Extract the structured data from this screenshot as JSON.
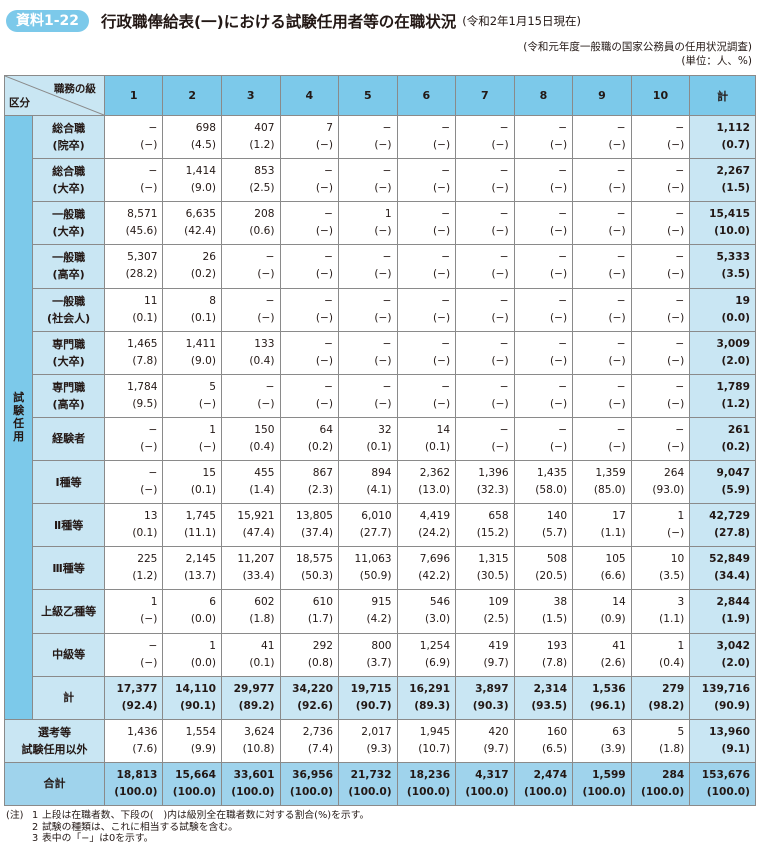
{
  "header": {
    "badge": "資料1-22",
    "title": "行政職俸給表(一)における試験任用者等の在職状況",
    "date": "(令和2年1月15日現在)"
  },
  "source": {
    "line1": "(令和元年度一般職の国家公務員の任用状況調査)",
    "line2": "(単位：人、%)"
  },
  "table": {
    "corner_top": "職務の級",
    "corner_bottom": "区分",
    "columns": [
      "1",
      "2",
      "3",
      "4",
      "5",
      "6",
      "7",
      "8",
      "9",
      "10",
      "計"
    ],
    "side_group_chars": [
      "試",
      "験",
      "任",
      "用"
    ],
    "rows": [
      {
        "label": [
          "総合職",
          "(院卒)"
        ],
        "values": [
          "−",
          "698",
          "407",
          "7",
          "−",
          "−",
          "−",
          "−",
          "−",
          "−",
          "1,112"
        ],
        "pcts": [
          "(−)",
          "(4.5)",
          "(1.2)",
          "(−)",
          "(−)",
          "(−)",
          "(−)",
          "(−)",
          "(−)",
          "(−)",
          "(0.7)"
        ]
      },
      {
        "label": [
          "総合職",
          "(大卒)"
        ],
        "values": [
          "−",
          "1,414",
          "853",
          "−",
          "−",
          "−",
          "−",
          "−",
          "−",
          "−",
          "2,267"
        ],
        "pcts": [
          "(−)",
          "(9.0)",
          "(2.5)",
          "(−)",
          "(−)",
          "(−)",
          "(−)",
          "(−)",
          "(−)",
          "(−)",
          "(1.5)"
        ]
      },
      {
        "label": [
          "一般職",
          "(大卒)"
        ],
        "values": [
          "8,571",
          "6,635",
          "208",
          "−",
          "1",
          "−",
          "−",
          "−",
          "−",
          "−",
          "15,415"
        ],
        "pcts": [
          "(45.6)",
          "(42.4)",
          "(0.6)",
          "(−)",
          "(−)",
          "(−)",
          "(−)",
          "(−)",
          "(−)",
          "(−)",
          "(10.0)"
        ]
      },
      {
        "label": [
          "一般職",
          "(高卒)"
        ],
        "values": [
          "5,307",
          "26",
          "−",
          "−",
          "−",
          "−",
          "−",
          "−",
          "−",
          "−",
          "5,333"
        ],
        "pcts": [
          "(28.2)",
          "(0.2)",
          "(−)",
          "(−)",
          "(−)",
          "(−)",
          "(−)",
          "(−)",
          "(−)",
          "(−)",
          "(3.5)"
        ]
      },
      {
        "label": [
          "一般職",
          "(社会人)"
        ],
        "values": [
          "11",
          "8",
          "−",
          "−",
          "−",
          "−",
          "−",
          "−",
          "−",
          "−",
          "19"
        ],
        "pcts": [
          "(0.1)",
          "(0.1)",
          "(−)",
          "(−)",
          "(−)",
          "(−)",
          "(−)",
          "(−)",
          "(−)",
          "(−)",
          "(0.0)"
        ]
      },
      {
        "label": [
          "専門職",
          "(大卒)"
        ],
        "values": [
          "1,465",
          "1,411",
          "133",
          "−",
          "−",
          "−",
          "−",
          "−",
          "−",
          "−",
          "3,009"
        ],
        "pcts": [
          "(7.8)",
          "(9.0)",
          "(0.4)",
          "(−)",
          "(−)",
          "(−)",
          "(−)",
          "(−)",
          "(−)",
          "(−)",
          "(2.0)"
        ]
      },
      {
        "label": [
          "専門職",
          "(高卒)"
        ],
        "values": [
          "1,784",
          "5",
          "−",
          "−",
          "−",
          "−",
          "−",
          "−",
          "−",
          "−",
          "1,789"
        ],
        "pcts": [
          "(9.5)",
          "(−)",
          "(−)",
          "(−)",
          "(−)",
          "(−)",
          "(−)",
          "(−)",
          "(−)",
          "(−)",
          "(1.2)"
        ]
      },
      {
        "label": [
          "経験者"
        ],
        "values": [
          "−",
          "1",
          "150",
          "64",
          "32",
          "14",
          "−",
          "−",
          "−",
          "−",
          "261"
        ],
        "pcts": [
          "(−)",
          "(−)",
          "(0.4)",
          "(0.2)",
          "(0.1)",
          "(0.1)",
          "(−)",
          "(−)",
          "(−)",
          "(−)",
          "(0.2)"
        ]
      },
      {
        "label": [
          "Ⅰ種等"
        ],
        "values": [
          "−",
          "15",
          "455",
          "867",
          "894",
          "2,362",
          "1,396",
          "1,435",
          "1,359",
          "264",
          "9,047"
        ],
        "pcts": [
          "(−)",
          "(0.1)",
          "(1.4)",
          "(2.3)",
          "(4.1)",
          "(13.0)",
          "(32.3)",
          "(58.0)",
          "(85.0)",
          "(93.0)",
          "(5.9)"
        ]
      },
      {
        "label": [
          "Ⅱ種等"
        ],
        "values": [
          "13",
          "1,745",
          "15,921",
          "13,805",
          "6,010",
          "4,419",
          "658",
          "140",
          "17",
          "1",
          "42,729"
        ],
        "pcts": [
          "(0.1)",
          "(11.1)",
          "(47.4)",
          "(37.4)",
          "(27.7)",
          "(24.2)",
          "(15.2)",
          "(5.7)",
          "(1.1)",
          "(−)",
          "(27.8)"
        ]
      },
      {
        "label": [
          "Ⅲ種等"
        ],
        "values": [
          "225",
          "2,145",
          "11,207",
          "18,575",
          "11,063",
          "7,696",
          "1,315",
          "508",
          "105",
          "10",
          "52,849"
        ],
        "pcts": [
          "(1.2)",
          "(13.7)",
          "(33.4)",
          "(50.3)",
          "(50.9)",
          "(42.2)",
          "(30.5)",
          "(20.5)",
          "(6.6)",
          "(3.5)",
          "(34.4)"
        ]
      },
      {
        "label": [
          "上級乙種等"
        ],
        "values": [
          "1",
          "6",
          "602",
          "610",
          "915",
          "546",
          "109",
          "38",
          "14",
          "3",
          "2,844"
        ],
        "pcts": [
          "(−)",
          "(0.0)",
          "(1.8)",
          "(1.7)",
          "(4.2)",
          "(3.0)",
          "(2.5)",
          "(1.5)",
          "(0.9)",
          "(1.1)",
          "(1.9)"
        ]
      },
      {
        "label": [
          "中級等"
        ],
        "values": [
          "−",
          "1",
          "41",
          "292",
          "800",
          "1,254",
          "419",
          "193",
          "41",
          "1",
          "3,042"
        ],
        "pcts": [
          "(−)",
          "(0.0)",
          "(0.1)",
          "(0.8)",
          "(3.7)",
          "(6.9)",
          "(9.7)",
          "(7.8)",
          "(2.6)",
          "(0.4)",
          "(2.0)"
        ]
      }
    ],
    "subtotal": {
      "label": "計",
      "values": [
        "17,377",
        "14,110",
        "29,977",
        "34,220",
        "19,715",
        "16,291",
        "3,897",
        "2,314",
        "1,536",
        "279",
        "139,716"
      ],
      "pcts": [
        "(92.4)",
        "(90.1)",
        "(89.2)",
        "(92.6)",
        "(90.7)",
        "(89.3)",
        "(90.3)",
        "(93.5)",
        "(96.1)",
        "(98.2)",
        "(90.9)"
      ]
    },
    "other": {
      "label": [
        "選考等",
        "試験任用以外"
      ],
      "values": [
        "1,436",
        "1,554",
        "3,624",
        "2,736",
        "2,017",
        "1,945",
        "420",
        "160",
        "63",
        "5",
        "13,960"
      ],
      "pcts": [
        "(7.6)",
        "(9.9)",
        "(10.8)",
        "(7.4)",
        "(9.3)",
        "(10.7)",
        "(9.7)",
        "(6.5)",
        "(3.9)",
        "(1.8)",
        "(9.1)"
      ]
    },
    "grand": {
      "label": "合計",
      "values": [
        "18,813",
        "15,664",
        "33,601",
        "36,956",
        "21,732",
        "18,236",
        "4,317",
        "2,474",
        "1,599",
        "284",
        "153,676"
      ],
      "pcts": [
        "(100.0)",
        "(100.0)",
        "(100.0)",
        "(100.0)",
        "(100.0)",
        "(100.0)",
        "(100.0)",
        "(100.0)",
        "(100.0)",
        "(100.0)",
        "(100.0)"
      ]
    }
  },
  "notes": {
    "prefix": "(注)",
    "items": [
      {
        "num": "1",
        "text": "上段は在職者数、下段の(　)内は級別全在職者数に対する割合(%)を示す。"
      },
      {
        "num": "2",
        "text": "試験の種類は、これに相当する試験を含む。"
      },
      {
        "num": "3",
        "text": "表中の「−」は0を示す。"
      }
    ]
  }
}
